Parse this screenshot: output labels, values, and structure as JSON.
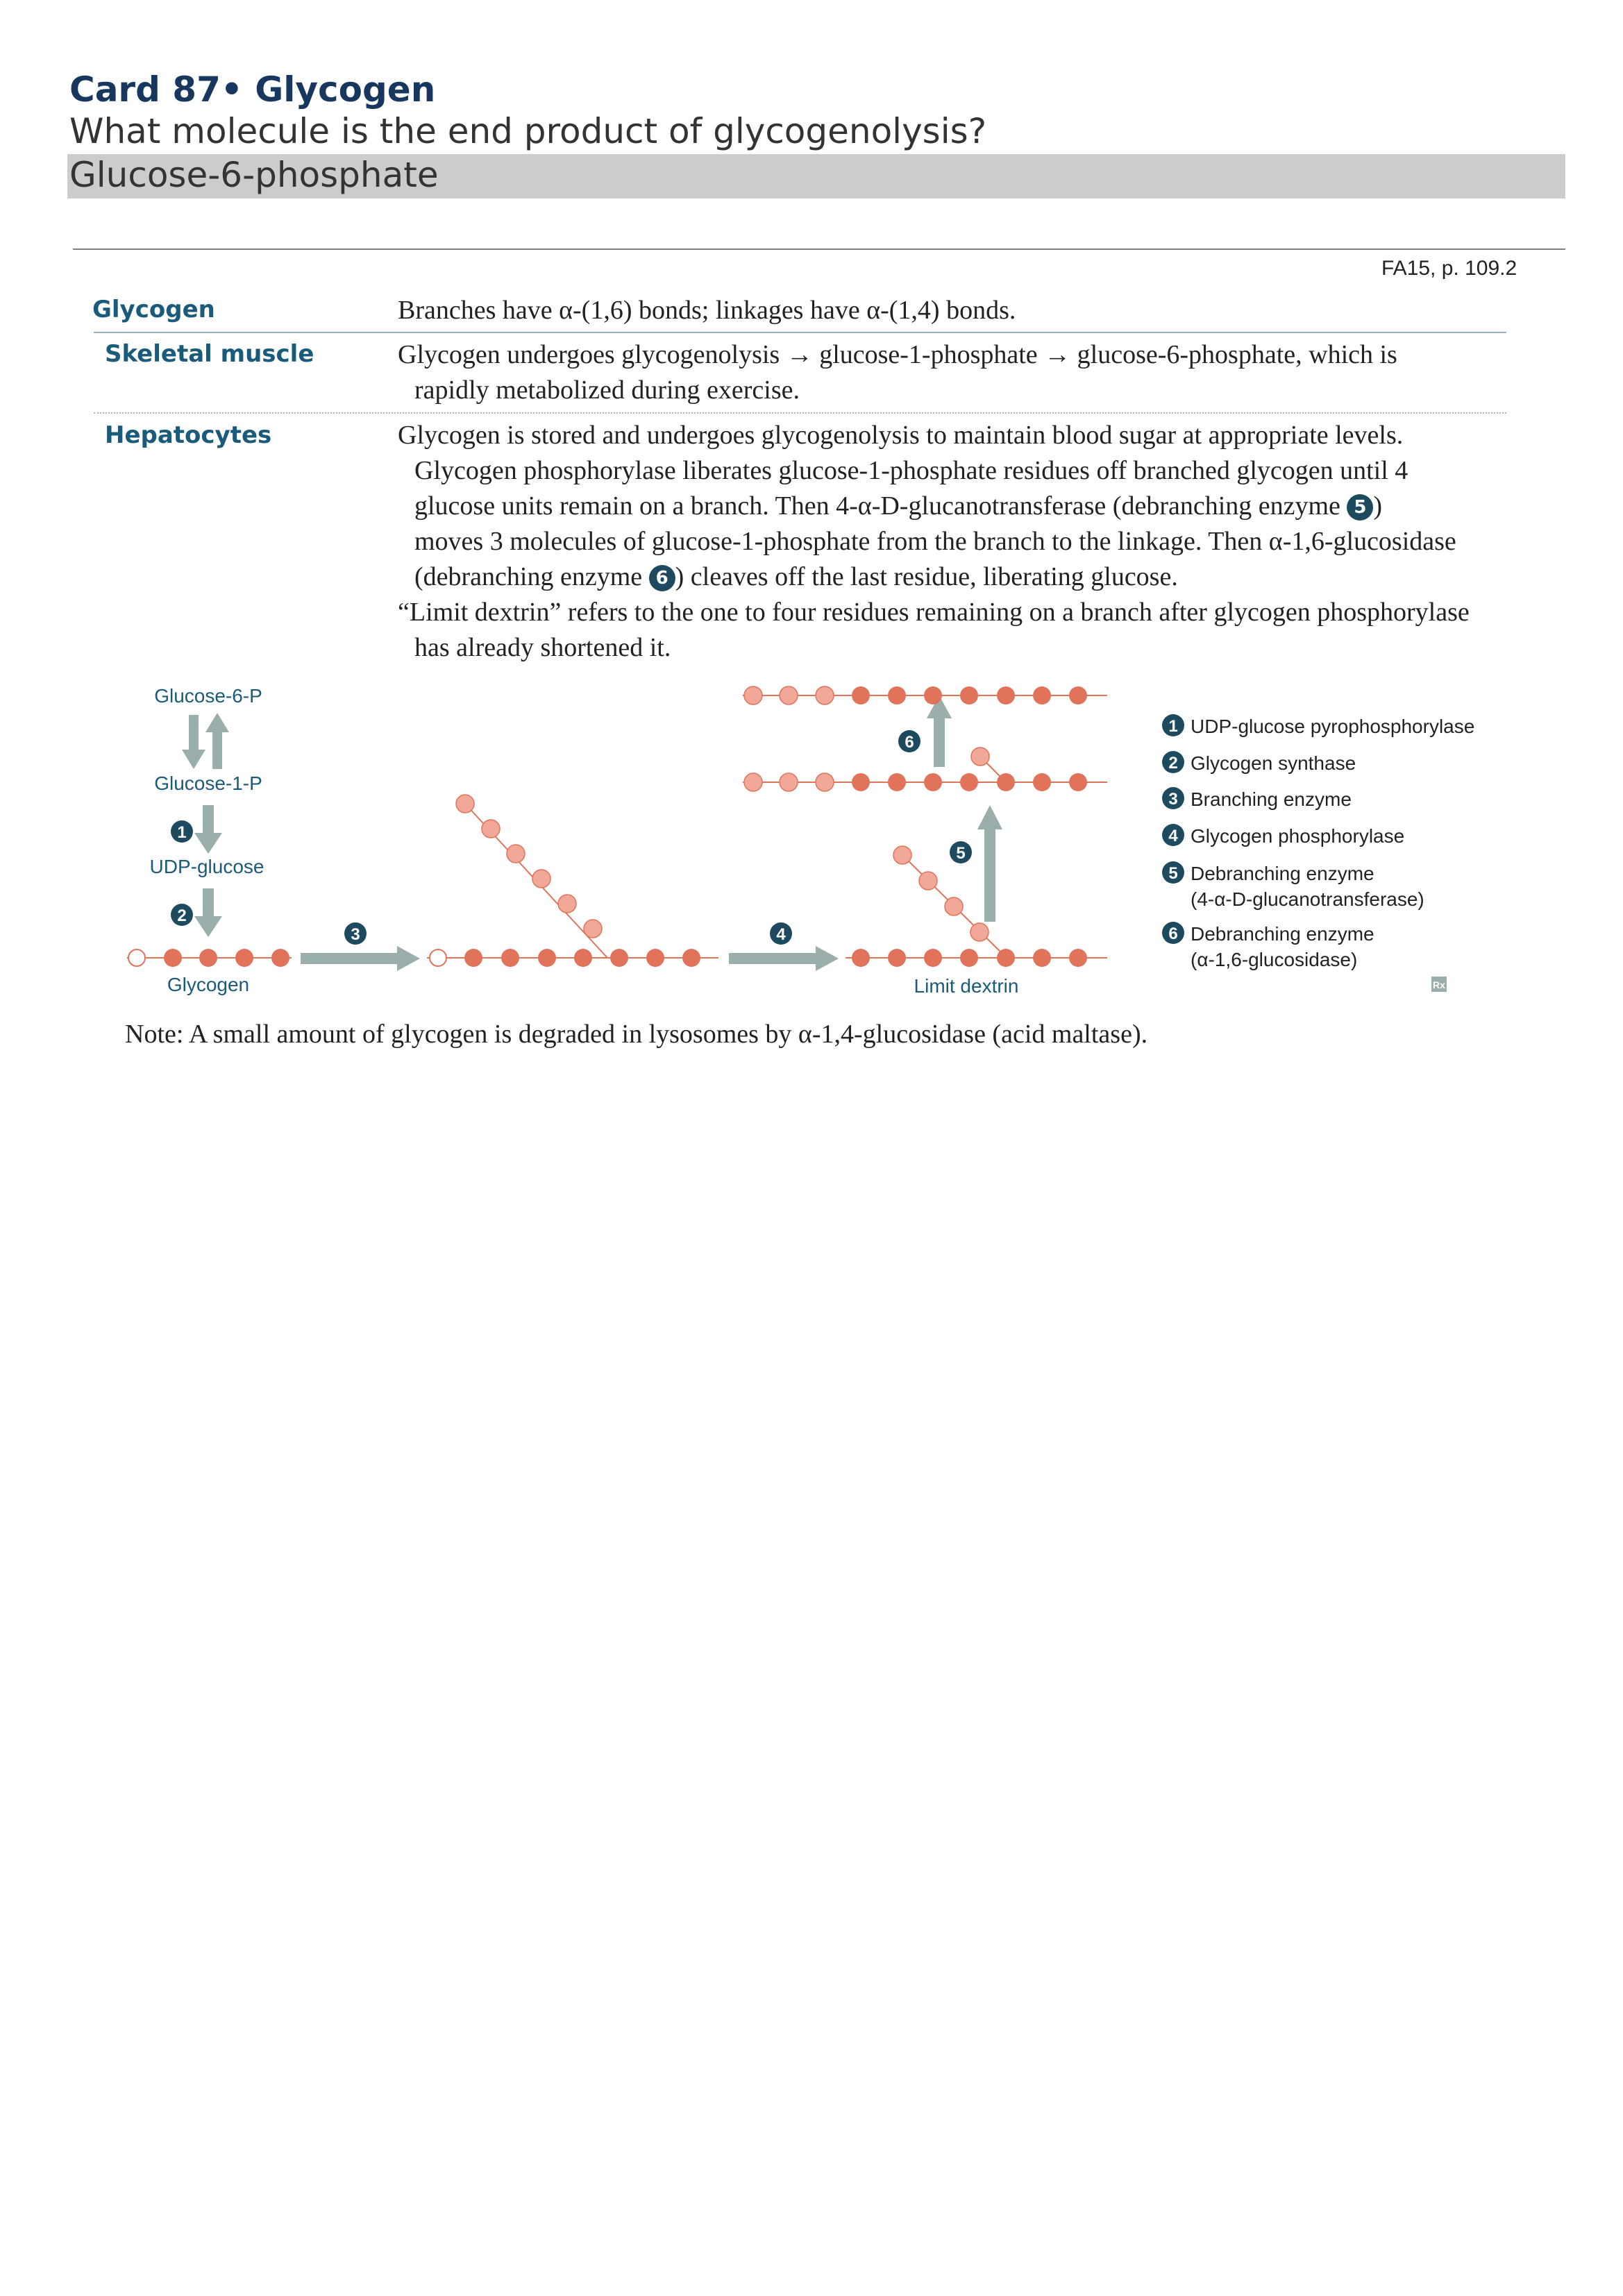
{
  "card": {
    "title": "Card 87• Glycogen",
    "question": "What molecule is the end product of glycogenolysis?",
    "answer": "Glucose-6-phosphate"
  },
  "source_ref": "FA15, p. 109.2",
  "rows": {
    "glycogen": {
      "label": "Glycogen",
      "text": "Branches have α-(1,6) bonds; linkages have α-(1,4) bonds."
    },
    "skeletal": {
      "label": "Skeletal muscle",
      "lines": [
        "Glycogen undergoes glycogenolysis → glucose-1-phosphate → glucose-6-phosphate, which is",
        "rapidly metabolized during exercise."
      ]
    },
    "hepatocytes": {
      "label": "Hepatocytes",
      "p1_lines": [
        "Glycogen is stored and undergoes glycogenolysis to maintain blood sugar at appropriate levels.",
        "Glycogen phosphorylase liberates glucose-1-phosphate residues off branched glycogen until 4",
        "glucose units remain on a branch. Then 4-α-D-glucanotransferase (debranching enzyme",
        "moves 3 molecules of glucose-1-phosphate from the branch to the linkage. Then α-1,6-glucosidase",
        "(debranching enzyme"
      ],
      "p1_tail_a": ")",
      "p1_tail_b": ") cleaves off the last residue, liberating glucose.",
      "p2_lines": [
        "“Limit dextrin” refers to the one to four residues remaining on a branch after glycogen phosphorylase",
        "has already shortened it."
      ],
      "inline_badges": [
        "5",
        "6"
      ]
    }
  },
  "diagram": {
    "labels": {
      "glucose6p": "Glucose-6-P",
      "glucose1p": "Glucose-1-P",
      "udp_glucose": "UDP-glucose",
      "glycogen": "Glycogen",
      "limit_dextrin": "Limit dextrin"
    },
    "step_numbers": [
      "1",
      "2",
      "3",
      "4",
      "5",
      "6"
    ],
    "legend": [
      {
        "num": "1",
        "text": "UDP-glucose pyrophosphorylase"
      },
      {
        "num": "2",
        "text": "Glycogen synthase"
      },
      {
        "num": "3",
        "text": "Branching enzyme"
      },
      {
        "num": "4",
        "text": "Glycogen phosphorylase"
      },
      {
        "num": "5",
        "text": "Debranching enzyme",
        "sub": "(4-α-D-glucanotransferase)"
      },
      {
        "num": "6",
        "text": "Debranching enzyme",
        "sub": "(α-1,6-glucosidase)"
      }
    ],
    "rx_mark": "Rx"
  },
  "note": "Note: A small amount of glycogen is degraded in lysosomes by α-1,4-glucosidase (acid maltase).",
  "colors": {
    "title": "#17375e",
    "label": "#1a5a7a",
    "answer_bg": "#cccccc",
    "dark_residue": "#e0735a",
    "light_residue": "#f2a898",
    "arrow": "#9aaeac",
    "badge": "#1d4a5e"
  }
}
